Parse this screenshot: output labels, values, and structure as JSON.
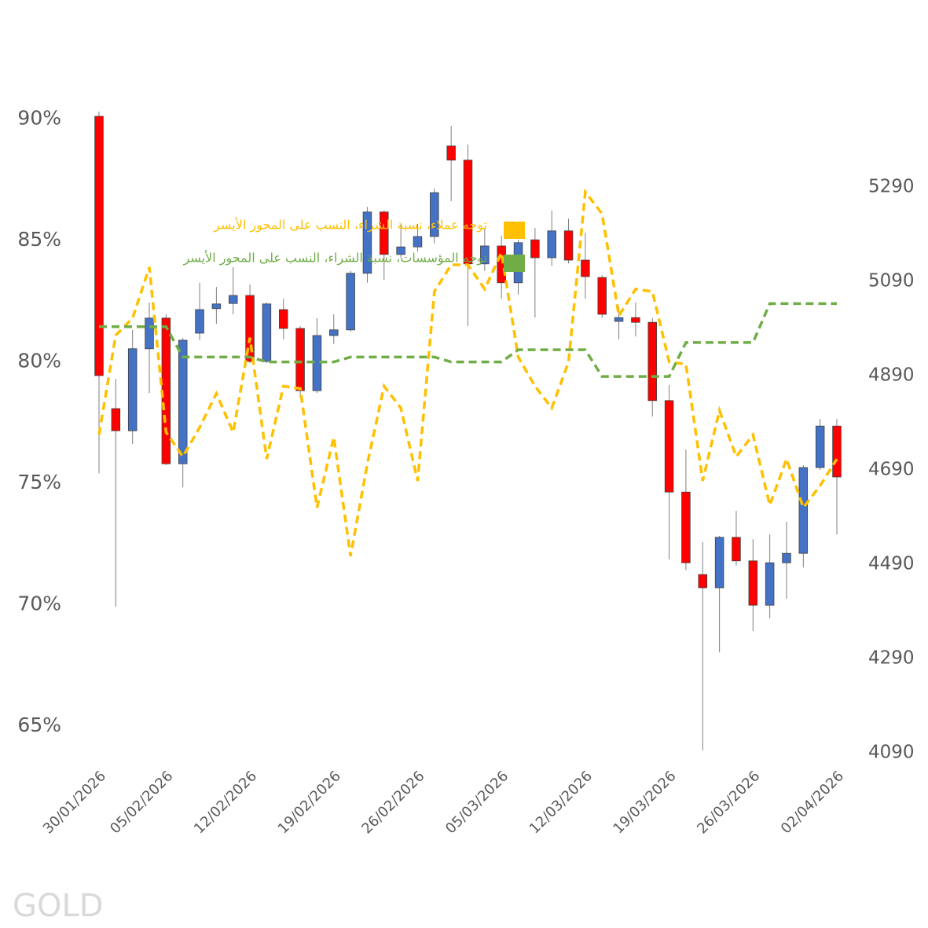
{
  "chart_data": {
    "type": "candlestick",
    "watermark": "GOLD",
    "categories": [
      "30/01/2026",
      null,
      null,
      null,
      "05/02/2026",
      null,
      null,
      null,
      null,
      "12/02/2026",
      null,
      null,
      null,
      null,
      "19/02/2026",
      null,
      null,
      null,
      null,
      "26/02/2026",
      null,
      null,
      null,
      null,
      "05/03/2026",
      null,
      null,
      null,
      null,
      "12/03/2026",
      null,
      null,
      null,
      null,
      "19/03/2026",
      null,
      null,
      null,
      null,
      "26/03/2026",
      null,
      null,
      null,
      null,
      "02/04/2026"
    ],
    "ohlc": {
      "axis": "y2",
      "up_color": "#4472c4",
      "down_color": "#ff0000",
      "open": [
        5440,
        4820,
        4773,
        4947,
        5012,
        4703,
        4980,
        5032,
        5043,
        5060,
        4920,
        5030,
        4990,
        4858,
        4975,
        4987,
        5107,
        5237,
        5147,
        5163,
        5185,
        5377,
        5347,
        5127,
        5165,
        5087,
        5178,
        5140,
        5197,
        5135,
        5098,
        5005,
        5013,
        5003,
        4837,
        4643,
        4468,
        4440,
        4547,
        4497,
        4403,
        4493,
        4513,
        4695,
        4783
      ],
      "high": [
        5450,
        4883,
        4987,
        5045,
        5020,
        4970,
        5087,
        5078,
        5120,
        5083,
        5045,
        5053,
        4995,
        5012,
        5020,
        5112,
        5248,
        5240,
        5212,
        5212,
        5287,
        5420,
        5380,
        5203,
        5187,
        5178,
        5203,
        5240,
        5223,
        5193,
        5103,
        5037,
        5045,
        5012,
        4870,
        4733,
        4537,
        4550,
        4603,
        4543,
        4553,
        4580,
        4700,
        4798,
        4798
      ],
      "low": [
        4683,
        4400,
        4745,
        4853,
        4700,
        4653,
        4965,
        5000,
        5020,
        4917,
        4917,
        4967,
        4843,
        4853,
        4957,
        4983,
        5087,
        5093,
        5140,
        5153,
        5170,
        5260,
        4995,
        5112,
        5053,
        5062,
        5013,
        5123,
        5128,
        5053,
        5012,
        4967,
        4973,
        4803,
        4500,
        4477,
        4095,
        4303,
        4487,
        4348,
        4375,
        4417,
        4483,
        4690,
        4553
      ],
      "close": [
        4890,
        4773,
        4947,
        5012,
        4703,
        4965,
        5030,
        5042,
        5060,
        4920,
        5042,
        4990,
        4858,
        4975,
        4987,
        5107,
        5237,
        5147,
        5163,
        5185,
        5278,
        5347,
        5127,
        5165,
        5087,
        5172,
        5140,
        5197,
        5135,
        5100,
        5020,
        5013,
        5003,
        4837,
        4643,
        4493,
        4440,
        4547,
        4497,
        4403,
        4493,
        4513,
        4695,
        4783,
        4675
      ]
    },
    "series": [
      {
        "name": "توجه عملاء، نسبة الشراء، النسب على المحور الأيسر",
        "color": "#ffc000",
        "axis": "y",
        "values": [
          77.0,
          81.1,
          81.8,
          83.9,
          77.1,
          76.1,
          77.3,
          78.7,
          77.1,
          81.0,
          76.0,
          79.0,
          78.9,
          74.0,
          76.9,
          72.0,
          75.8,
          79.0,
          78.1,
          75.1,
          82.9,
          84.0,
          84.0,
          83.0,
          84.5,
          80.2,
          79.0,
          78.1,
          80.0,
          87.0,
          86.1,
          81.9,
          83.0,
          82.9,
          80.0,
          79.9,
          75.1,
          78.0,
          76.1,
          77.0,
          74.1,
          76.0,
          74.0,
          74.9,
          76.0
        ]
      },
      {
        "name": "توجه المؤسسات، نسبة الشراء، النسب على المحور الأيسر",
        "color": "#70ad47",
        "axis": "y",
        "values": [
          81.45,
          81.45,
          81.45,
          81.45,
          81.45,
          80.2,
          80.2,
          80.2,
          80.2,
          80.2,
          80.0,
          80.0,
          80.0,
          80.0,
          80.0,
          80.2,
          80.2,
          80.2,
          80.2,
          80.2,
          80.2,
          80.0,
          80.0,
          80.0,
          80.0,
          80.5,
          80.5,
          80.5,
          80.5,
          80.5,
          79.4,
          79.4,
          79.4,
          79.4,
          79.4,
          80.8,
          80.8,
          80.8,
          80.8,
          80.8,
          82.4,
          82.4,
          82.4,
          82.4,
          82.4
        ]
      }
    ],
    "ylim": [
      63.9,
      90.7
    ],
    "yticks": [
      {
        "value": 65,
        "label": "65%"
      },
      {
        "value": 70,
        "label": "70%"
      },
      {
        "value": 75,
        "label": "75%"
      },
      {
        "value": 80,
        "label": "80%"
      },
      {
        "value": 85,
        "label": "85%"
      },
      {
        "value": 90,
        "label": "90%"
      }
    ],
    "y2lim": [
      4090,
      5470
    ],
    "y2ticks": [
      4090,
      4290,
      4490,
      4690,
      4890,
      5090,
      5290
    ],
    "grid": false
  }
}
